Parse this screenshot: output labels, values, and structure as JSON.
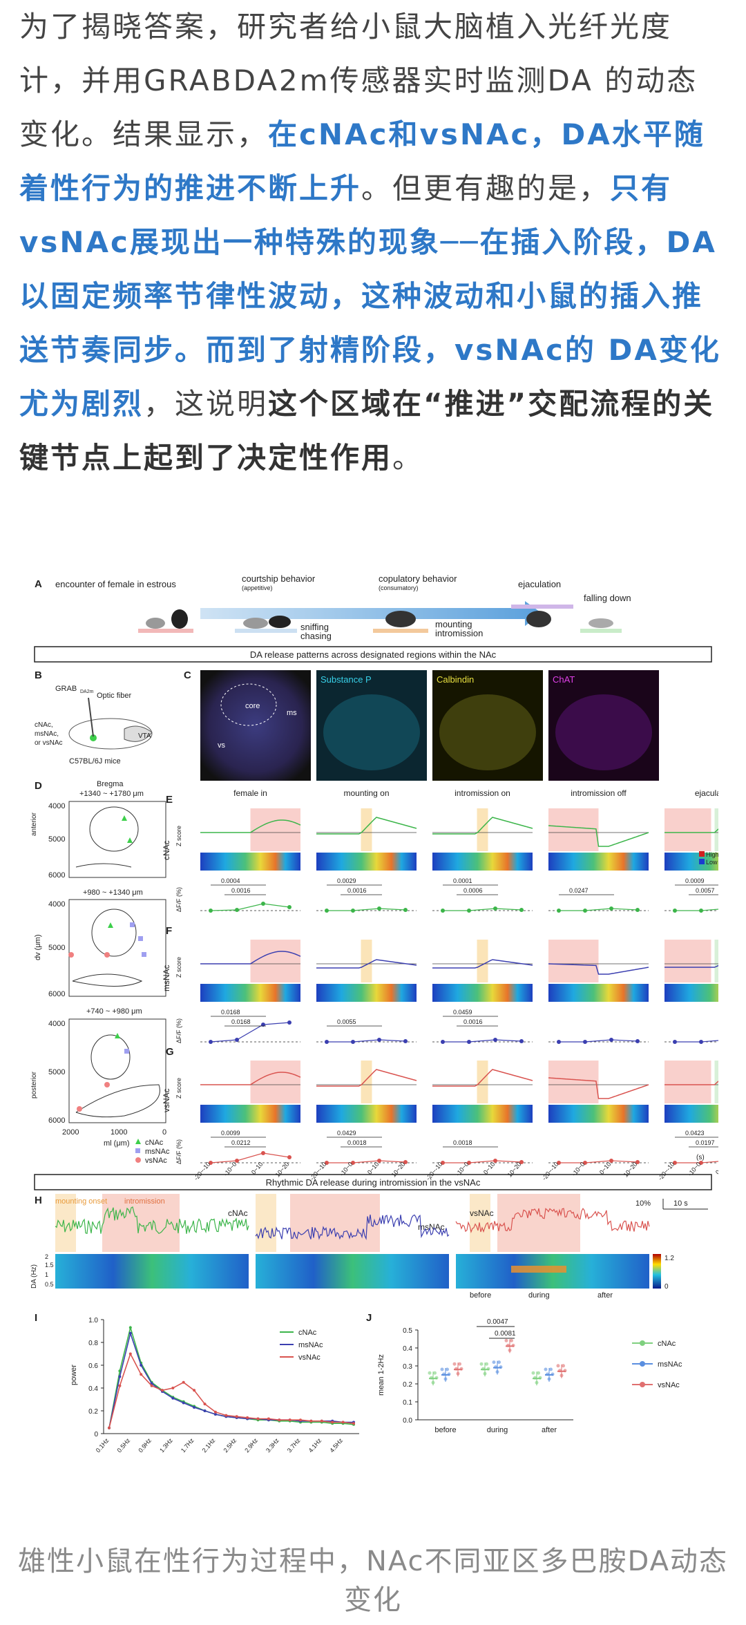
{
  "article": {
    "p1_a": "为了揭晓答案，研究者给小鼠大脑植入光纤光度计，并用GRABDA2m传感器实时监测DA 的动态变化。结果显示，",
    "p1_b": "在cNAc和vsNAc，DA水平随着性行为的推进不断上升",
    "p1_c": "。但更有趣的是，",
    "p1_d": "只有vsNAc展现出一种特殊的现象──在插入阶段，DA以固定频率节律性波动，这种波动和小鼠的插入推送节奏同步。而到了射精阶段，vsNAc的 DA变化尤为剧烈",
    "p1_e": "，这说明",
    "p1_f": "这个区域在“推进”交配流程的关键节点上起到了决定性作用",
    "p1_g": "。"
  },
  "figure": {
    "panelA": {
      "label": "A",
      "encounter": "encounter of female in estrous",
      "courtship": "courtship behavior",
      "appetitive": "(appetitive)",
      "copulatory": "copulatory behavior",
      "consummatory": "(consumatory)",
      "ejaculation": "ejaculation",
      "falling": "falling down",
      "sniffing": "sniffing",
      "chasing": "chasing",
      "mounting": "mounting",
      "intromission": "intromission"
    },
    "banner1": "DA release patterns across designated regions within the NAc",
    "panelB": {
      "label": "B",
      "grab": "GRAB",
      "grab_sub": "DA2m",
      "fiber": "Optic fiber",
      "regions": "cNAc,\nmsNAc,\nor vsNAc",
      "vta": "VTA",
      "mice": "C57BL/6J mice"
    },
    "panelC": {
      "label": "C",
      "core": "core",
      "ms": "ms",
      "vs": "vs",
      "sp": "Substance P",
      "calb": "Calbindin",
      "chat": "ChAT"
    },
    "panelD": {
      "label": "D",
      "bregma": "Bregma",
      "r1": "+1340 ~ +1780 μm",
      "r2": "+980 ~ +1340 μm",
      "r3": "+740 ~ +980 μm",
      "yticks": [
        "4000",
        "5000",
        "6000"
      ],
      "xticks": [
        "2000",
        "1000",
        "0"
      ],
      "xlabel": "ml (μm)",
      "ylabel": "dv (μm)",
      "anterior": "anterior",
      "posterior": "posterior",
      "legend": [
        "cNAc",
        "msNAc",
        "vsNAc"
      ]
    },
    "events": [
      "female in",
      "mounting on",
      "intromission on",
      "intromission off",
      "ejaculation"
    ],
    "rows": [
      {
        "label": "E",
        "region": "cNAc",
        "color": "#3cb54a",
        "pvals": [
          [
            "0.0004",
            "0.0016"
          ],
          [
            "0.0029",
            "0.0016"
          ],
          [
            "0.0001",
            "0.0006"
          ],
          [
            "0.0247"
          ],
          [
            "0.0009",
            "0.0057"
          ]
        ]
      },
      {
        "label": "F",
        "region": "msNAc",
        "color": "#3b3fb0",
        "pvals": [
          [
            "0.0168",
            "0.0168"
          ],
          [
            "0.0055"
          ],
          [
            "0.0459",
            "0.0016"
          ],
          [],
          []
        ]
      },
      {
        "label": "G",
        "region": "vsNAc",
        "color": "#d9534f",
        "pvals": [
          [
            "0.0099",
            "0.0212"
          ],
          [
            "0.0429",
            "0.0018"
          ],
          [
            "0.0018"
          ],
          [],
          [
            "0.0423",
            "0.0197"
          ]
        ]
      }
    ],
    "zscore": "Z score",
    "dff": "ΔF/F (%)",
    "high": "High",
    "low": "Low",
    "xcats": [
      "-20~-10",
      "-10~0",
      "0~10",
      "10~20"
    ],
    "sec": "(s)",
    "banner2": "Rhythmic DA release during intromission in the vsNAc",
    "panelH": {
      "label": "H",
      "onset": "mounting onset",
      "intromission": "intromission",
      "cnac": "cNAc",
      "msnac": "msNAc",
      "vsnac": "vsNAc",
      "scale_pct": "10%",
      "scale_s": "10 s",
      "ylabel": "DA (Hz)",
      "yticks": [
        "2",
        "1.5",
        "1",
        "0.5"
      ],
      "cbar": [
        "1.2",
        "0"
      ],
      "phases": [
        "before",
        "during",
        "after"
      ]
    },
    "panelI": {
      "label": "I",
      "ylabel": "power",
      "yticks": [
        "1.0",
        "0.8",
        "0.6",
        "0.4",
        "0.2",
        "0"
      ],
      "xticks": [
        "0.1Hz",
        "0.5Hz",
        "0.9Hz",
        "1.3Hz",
        "1.7Hz",
        "2.1Hz",
        "2.5Hz",
        "2.9Hz",
        "3.3Hz",
        "3.7Hz",
        "4.1Hz",
        "4.5Hz"
      ],
      "legend": [
        "cNAc",
        "msNAc",
        "vsNAc"
      ]
    },
    "panelJ": {
      "label": "J",
      "ylabel": "mean 1-2Hz",
      "yticks": [
        "0.5",
        "0.4",
        "0.3",
        "0.2",
        "0.1",
        "0.0"
      ],
      "phases": [
        "before",
        "during",
        "after"
      ],
      "p1": "0.0047",
      "p2": "0.0081",
      "legend": [
        "cNAc",
        "msNAc",
        "vsNAc"
      ]
    }
  },
  "chart_data": [
    {
      "type": "line",
      "title": "",
      "xlabel": "",
      "ylabel": "power",
      "x": [
        "0.1Hz",
        "0.3Hz",
        "0.5Hz",
        "0.7Hz",
        "0.9Hz",
        "1.1Hz",
        "1.3Hz",
        "1.5Hz",
        "1.7Hz",
        "1.9Hz",
        "2.1Hz",
        "2.3Hz",
        "2.5Hz",
        "2.7Hz",
        "2.9Hz",
        "3.1Hz",
        "3.3Hz",
        "3.5Hz",
        "3.7Hz",
        "3.9Hz",
        "4.1Hz",
        "4.3Hz",
        "4.5Hz",
        "4.7Hz"
      ],
      "ylim": [
        0,
        1.0
      ],
      "series": [
        {
          "name": "cNAc",
          "values": [
            0.05,
            0.55,
            0.93,
            0.62,
            0.45,
            0.38,
            0.32,
            0.28,
            0.24,
            0.2,
            0.17,
            0.15,
            0.14,
            0.13,
            0.12,
            0.12,
            0.11,
            0.11,
            0.1,
            0.1,
            0.1,
            0.09,
            0.09,
            0.08
          ]
        },
        {
          "name": "msNAc",
          "values": [
            0.05,
            0.5,
            0.88,
            0.6,
            0.44,
            0.37,
            0.31,
            0.27,
            0.23,
            0.2,
            0.17,
            0.15,
            0.14,
            0.13,
            0.13,
            0.12,
            0.12,
            0.12,
            0.11,
            0.11,
            0.11,
            0.11,
            0.1,
            0.1
          ]
        },
        {
          "name": "vsNAc",
          "values": [
            0.05,
            0.42,
            0.7,
            0.52,
            0.42,
            0.38,
            0.4,
            0.45,
            0.38,
            0.26,
            0.19,
            0.16,
            0.15,
            0.14,
            0.13,
            0.13,
            0.12,
            0.12,
            0.12,
            0.11,
            0.11,
            0.1,
            0.1,
            0.09
          ]
        }
      ]
    },
    {
      "type": "bar",
      "title": "",
      "xlabel": "",
      "ylabel": "mean 1-2Hz",
      "categories": [
        "before",
        "during",
        "after"
      ],
      "ylim": [
        0,
        0.5
      ],
      "series": [
        {
          "name": "cNAc",
          "values": [
            0.23,
            0.28,
            0.23
          ]
        },
        {
          "name": "msNAc",
          "values": [
            0.25,
            0.29,
            0.25
          ]
        },
        {
          "name": "vsNAc",
          "values": [
            0.28,
            0.41,
            0.27
          ]
        }
      ]
    }
  ]
}
